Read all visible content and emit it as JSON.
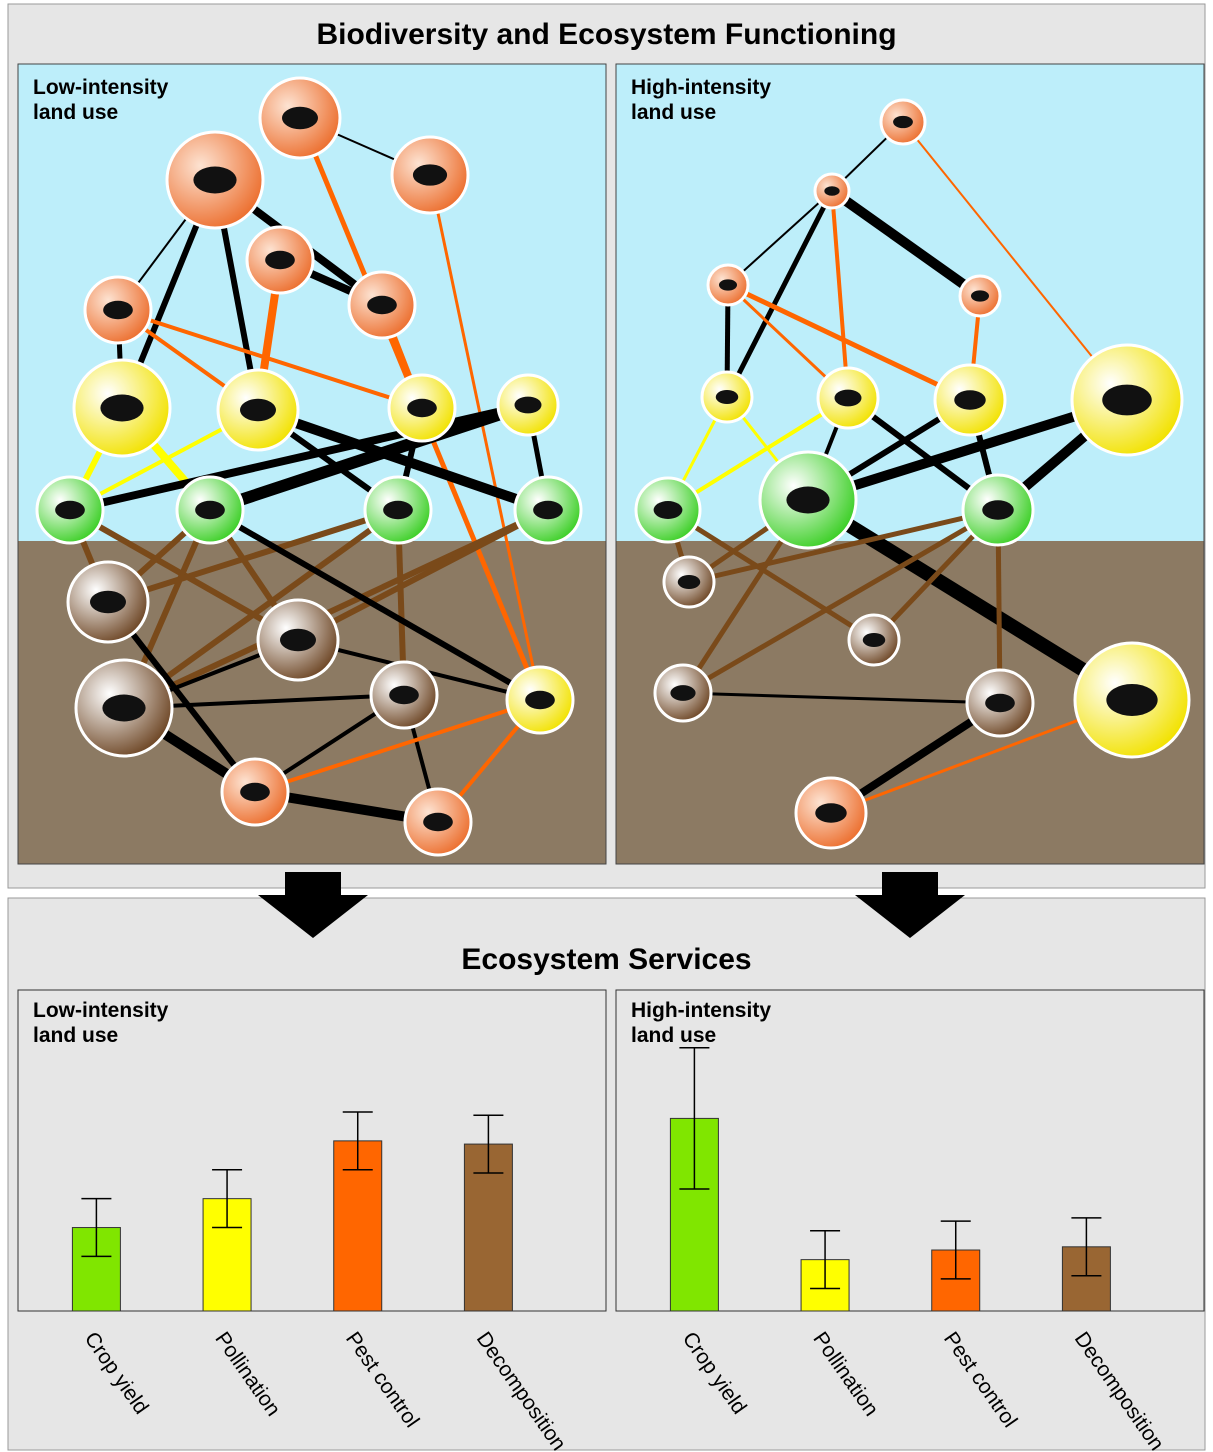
{
  "top_section": {
    "title": "Biodiversity and Ecosystem Functioning",
    "panels": [
      "Low-intensity land use",
      "High-intensity land use"
    ]
  },
  "bottom_section": {
    "title": "Ecosystem Services"
  },
  "chart_data": [
    {
      "type": "bar",
      "title": "Low-intensity land use",
      "categories": [
        "Crop yield",
        "Pollination",
        "Pest control",
        "Decomposition"
      ],
      "values": [
        26,
        35,
        53,
        52
      ],
      "errors": [
        9,
        9,
        9,
        9
      ],
      "colors": [
        "#80e600",
        "#ffff00",
        "#ff6600",
        "#996633"
      ],
      "ylim": [
        0,
        100
      ]
    },
    {
      "type": "bar",
      "title": "High-intensity land use",
      "categories": [
        "Crop yield",
        "Pollination",
        "Pest control",
        "Decomposition"
      ],
      "values": [
        60,
        16,
        19,
        20
      ],
      "errors": [
        22,
        9,
        9,
        9
      ],
      "colors": [
        "#80e600",
        "#ffff00",
        "#ff6600",
        "#996633"
      ],
      "ylim": [
        0,
        100
      ]
    }
  ]
}
